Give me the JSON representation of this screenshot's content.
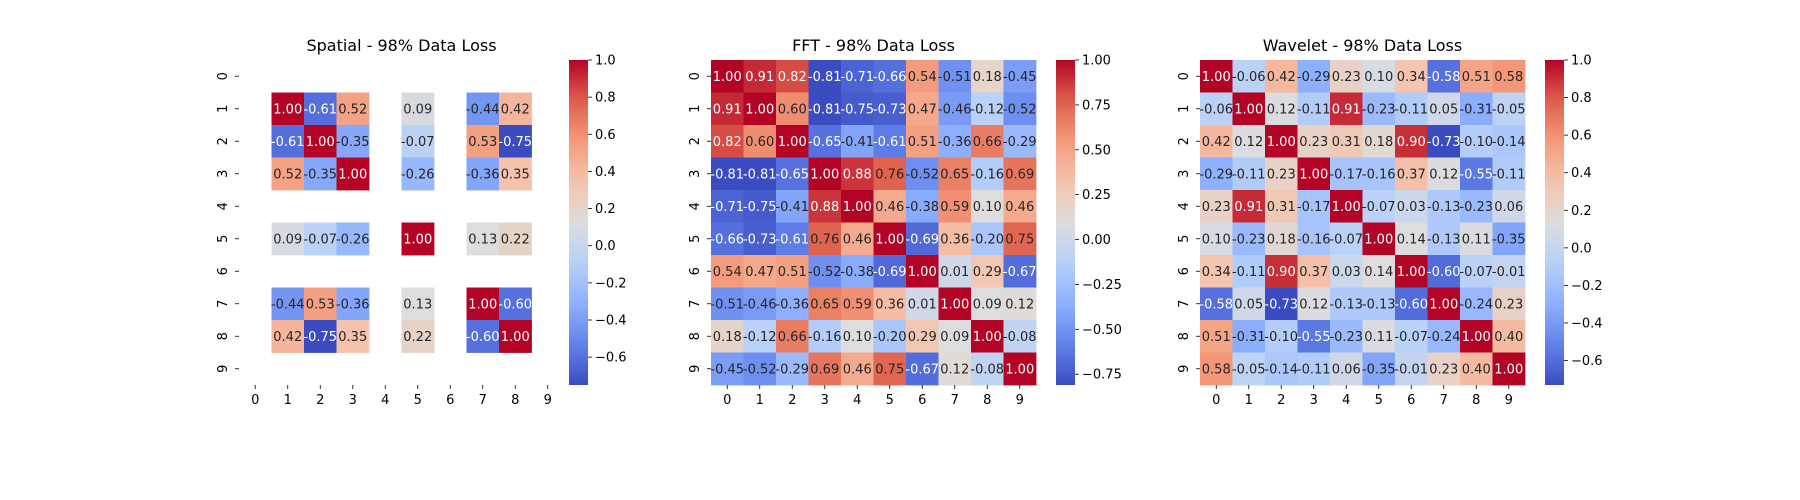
{
  "chart_data": [
    {
      "type": "heatmap",
      "title": "Spatial - 98% Data Loss",
      "x_ticks": [
        "0",
        "1",
        "2",
        "3",
        "4",
        "5",
        "6",
        "7",
        "8",
        "9"
      ],
      "y_ticks": [
        "0",
        "1",
        "2",
        "3",
        "4",
        "5",
        "6",
        "7",
        "8",
        "9"
      ],
      "colormap": "coolwarm",
      "vmin": -0.75,
      "vmax": 1.0,
      "colorbar_ticks": [
        "-0.6",
        "-0.4",
        "-0.2",
        "0.0",
        "0.2",
        "0.4",
        "0.6",
        "0.8",
        "1.0"
      ],
      "matrix": [
        [
          null,
          null,
          null,
          null,
          null,
          null,
          null,
          null,
          null,
          null
        ],
        [
          null,
          1.0,
          -0.61,
          0.52,
          null,
          0.09,
          null,
          -0.44,
          0.42,
          null
        ],
        [
          null,
          -0.61,
          1.0,
          -0.35,
          null,
          -0.07,
          null,
          0.53,
          -0.75,
          null
        ],
        [
          null,
          0.52,
          -0.35,
          1.0,
          null,
          -0.26,
          null,
          -0.36,
          0.35,
          null
        ],
        [
          null,
          null,
          null,
          null,
          null,
          null,
          null,
          null,
          null,
          null
        ],
        [
          null,
          0.09,
          -0.07,
          -0.26,
          null,
          1.0,
          null,
          0.13,
          0.22,
          null
        ],
        [
          null,
          null,
          null,
          null,
          null,
          null,
          null,
          null,
          null,
          null
        ],
        [
          null,
          -0.44,
          0.53,
          -0.36,
          null,
          0.13,
          null,
          1.0,
          -0.6,
          null
        ],
        [
          null,
          0.42,
          -0.75,
          0.35,
          null,
          0.22,
          null,
          -0.6,
          1.0,
          null
        ],
        [
          null,
          null,
          null,
          null,
          null,
          null,
          null,
          null,
          null,
          null
        ]
      ]
    },
    {
      "type": "heatmap",
      "title": "FFT - 98% Data Loss",
      "x_ticks": [
        "0",
        "1",
        "2",
        "3",
        "4",
        "5",
        "6",
        "7",
        "8",
        "9"
      ],
      "y_ticks": [
        "0",
        "1",
        "2",
        "3",
        "4",
        "5",
        "6",
        "7",
        "8",
        "9"
      ],
      "colormap": "coolwarm",
      "vmin": -0.81,
      "vmax": 1.0,
      "colorbar_ticks": [
        "-0.75",
        "-0.50",
        "-0.25",
        "0.00",
        "0.25",
        "0.50",
        "0.75",
        "1.00"
      ],
      "matrix": [
        [
          1.0,
          0.91,
          0.82,
          -0.81,
          -0.71,
          -0.66,
          0.54,
          -0.51,
          0.18,
          -0.45
        ],
        [
          0.91,
          1.0,
          0.6,
          -0.81,
          -0.75,
          -0.73,
          0.47,
          -0.46,
          -0.12,
          -0.52
        ],
        [
          0.82,
          0.6,
          1.0,
          -0.65,
          -0.41,
          -0.61,
          0.51,
          -0.36,
          0.66,
          -0.29
        ],
        [
          -0.81,
          -0.81,
          -0.65,
          1.0,
          0.88,
          0.76,
          -0.52,
          0.65,
          -0.16,
          0.69
        ],
        [
          -0.71,
          -0.75,
          -0.41,
          0.88,
          1.0,
          0.46,
          -0.38,
          0.59,
          0.1,
          0.46
        ],
        [
          -0.66,
          -0.73,
          -0.61,
          0.76,
          0.46,
          1.0,
          -0.69,
          0.36,
          -0.2,
          0.75
        ],
        [
          0.54,
          0.47,
          0.51,
          -0.52,
          -0.38,
          -0.69,
          1.0,
          0.01,
          0.29,
          -0.67
        ],
        [
          -0.51,
          -0.46,
          -0.36,
          0.65,
          0.59,
          0.36,
          0.01,
          1.0,
          0.09,
          0.12
        ],
        [
          0.18,
          -0.12,
          0.66,
          -0.16,
          0.1,
          -0.2,
          0.29,
          0.09,
          1.0,
          -0.08
        ],
        [
          -0.45,
          -0.52,
          -0.29,
          0.69,
          0.46,
          0.75,
          -0.67,
          0.12,
          -0.08,
          1.0
        ]
      ]
    },
    {
      "type": "heatmap",
      "title": "Wavelet - 98% Data Loss",
      "x_ticks": [
        "0",
        "1",
        "2",
        "3",
        "4",
        "5",
        "6",
        "7",
        "8",
        "9"
      ],
      "y_ticks": [
        "0",
        "1",
        "2",
        "3",
        "4",
        "5",
        "6",
        "7",
        "8",
        "9"
      ],
      "colormap": "coolwarm",
      "vmin": -0.73,
      "vmax": 1.0,
      "colorbar_ticks": [
        "-0.6",
        "-0.4",
        "-0.2",
        "0.0",
        "0.2",
        "0.4",
        "0.6",
        "0.8",
        "1.0"
      ],
      "matrix": [
        [
          1.0,
          -0.06,
          0.42,
          -0.29,
          0.23,
          0.1,
          0.34,
          -0.58,
          0.51,
          0.58
        ],
        [
          -0.06,
          1.0,
          0.12,
          -0.11,
          0.91,
          -0.23,
          -0.11,
          0.05,
          -0.31,
          -0.05
        ],
        [
          0.42,
          0.12,
          1.0,
          0.23,
          0.31,
          0.18,
          0.9,
          -0.73,
          -0.1,
          -0.14
        ],
        [
          -0.29,
          -0.11,
          0.23,
          1.0,
          -0.17,
          -0.16,
          0.37,
          0.12,
          -0.55,
          -0.11
        ],
        [
          0.23,
          0.91,
          0.31,
          -0.17,
          1.0,
          -0.07,
          0.03,
          -0.13,
          -0.23,
          0.06
        ],
        [
          0.1,
          -0.23,
          0.18,
          -0.16,
          -0.07,
          1.0,
          0.14,
          -0.13,
          0.11,
          -0.35
        ],
        [
          0.34,
          -0.11,
          0.9,
          0.37,
          0.03,
          0.14,
          1.0,
          -0.6,
          -0.07,
          -0.01
        ],
        [
          -0.58,
          0.05,
          -0.73,
          0.12,
          -0.13,
          -0.13,
          -0.6,
          1.0,
          -0.24,
          0.23
        ],
        [
          0.51,
          -0.31,
          -0.1,
          -0.55,
          -0.23,
          0.11,
          -0.07,
          -0.24,
          1.0,
          0.4
        ],
        [
          0.58,
          -0.05,
          -0.14,
          -0.11,
          0.06,
          -0.35,
          -0.01,
          0.23,
          0.4,
          1.0
        ]
      ]
    }
  ]
}
